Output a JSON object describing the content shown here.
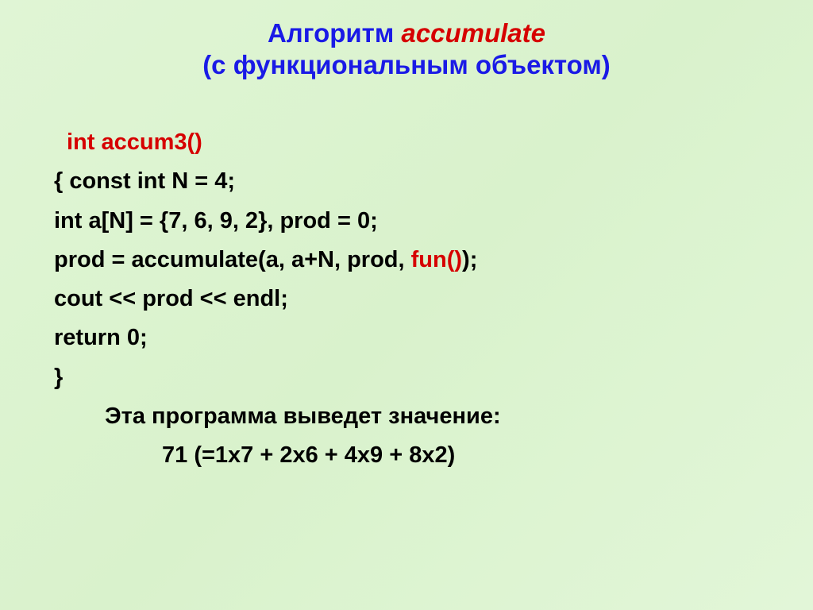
{
  "title": {
    "line1_prefix": "Алгоритм ",
    "line1_accent": "accumulate",
    "line2": "(с функциональным объектом)"
  },
  "code": {
    "decl": "int accum3()",
    "l1": "{    const int N = 4;",
    "l2": "int a[N] = {7, 6, 9, 2}, prod = 0;",
    "l3_a": "prod =  accumulate(a, a+N, prod, ",
    "l3_fun": "fun()",
    "l3_b": ");",
    "l4": "cout << prod << endl;",
    "l5": "return  0;",
    "l6": "}"
  },
  "caption": {
    "line1": "Эта программа выведет значение:",
    "line2": "71 (=1x7 + 2x6 + 4x9 + 8x2)"
  },
  "colors": {
    "title_blue": "#1a1ae6",
    "accent_red": "#d60000",
    "body_text": "#000000",
    "bg_start": "#e0f5d5",
    "bg_end": "#e2f6d8"
  },
  "font": {
    "title_size_pt": 25,
    "body_size_pt": 22,
    "weight": "bold",
    "family": "Arial"
  }
}
